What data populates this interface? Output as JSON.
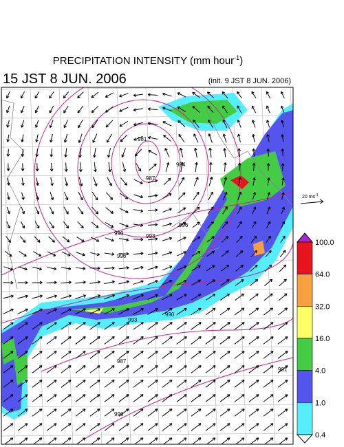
{
  "header": {
    "title": {
      "text": "PRECIPITATION INTENSITY (mm hour",
      "sup": "-1",
      "close": ")"
    },
    "valid_time": "15 JST 8 JUN. 2006",
    "init_time": "(init. 9 JST 8 JUN. 2006)"
  },
  "reference_vector": {
    "text": "20 ms",
    "sup": "-1"
  },
  "colorbar": {
    "labels": [
      "100.0",
      "64.0",
      "32.0",
      "16.0",
      "4.0",
      "1.0",
      "0.4"
    ],
    "colors": [
      "#e8141c",
      "#f7a040",
      "#ffff66",
      "#44cc44",
      "#5555ee",
      "#55eeff"
    ],
    "over_color": "#aa22dd"
  },
  "contour_labels": [
    "981",
    "984",
    "987",
    "990",
    "993",
    "996",
    "996",
    "993",
    "990",
    "987",
    "991",
    "996"
  ]
}
